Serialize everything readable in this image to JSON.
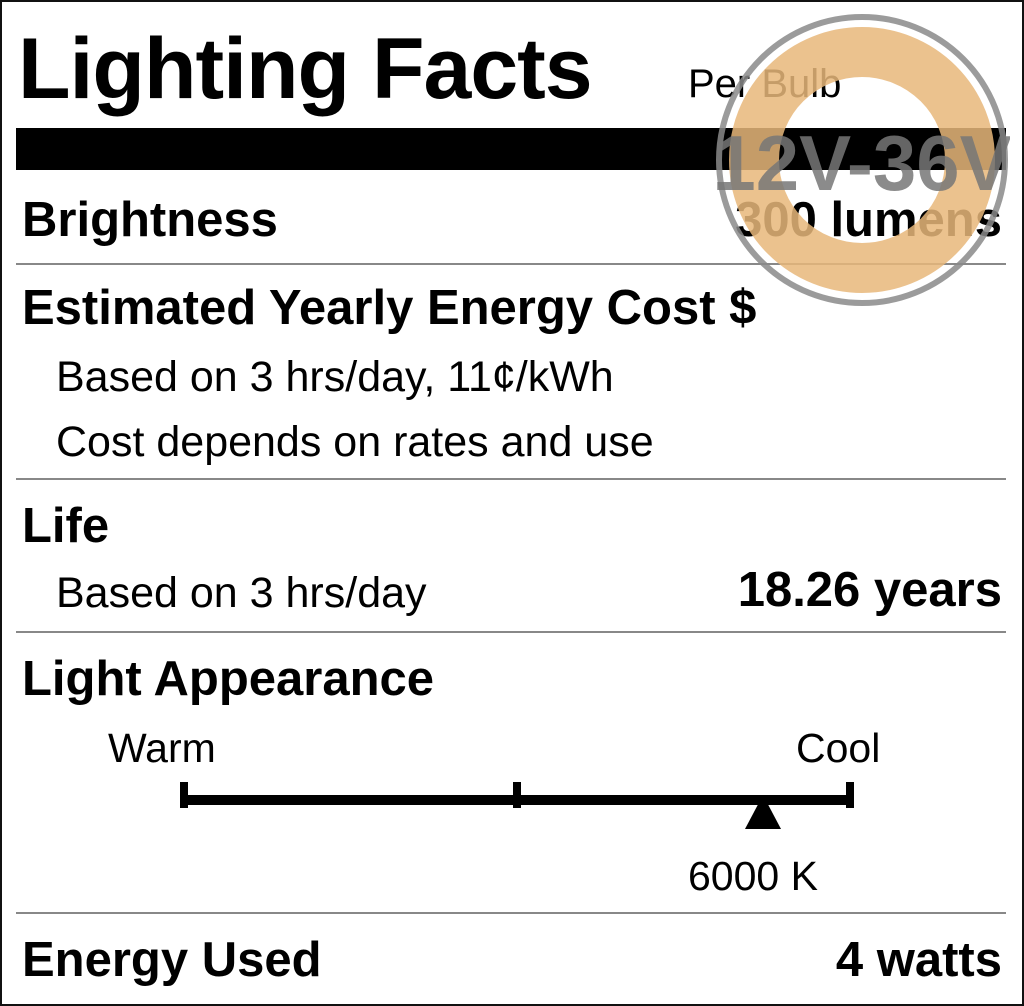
{
  "label": {
    "title": "Lighting Facts",
    "per": "Per Bulb",
    "brightness": {
      "label": "Brightness",
      "value": "300 lumens"
    },
    "cost": {
      "label": "Estimated Yearly Energy Cost $",
      "basis": "Based on 3 hrs/day, 11¢/kWh",
      "note": "Cost depends on rates and use"
    },
    "life": {
      "label": "Life",
      "basis": "Based on 3 hrs/day",
      "value": "18.26 years"
    },
    "appearance": {
      "label": "Light Appearance",
      "warm": "Warm",
      "cool": "Cool",
      "marker_value": "6000 K",
      "marker_fraction": 0.87
    },
    "energy": {
      "label": "Energy Used",
      "value": "4 watts"
    }
  },
  "badge": {
    "text": "12V-36V",
    "ring_color": "#8a8a8a",
    "fill_color": "#e8b77a"
  }
}
